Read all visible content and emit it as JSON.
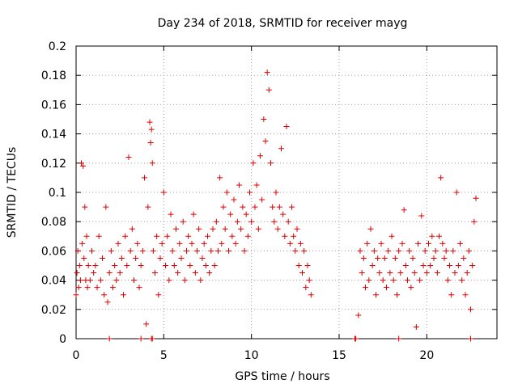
{
  "chart_data": {
    "type": "scatter",
    "title": "Day 234 of 2018, SRMTID for receiver mayg",
    "xlabel": "GPS time / hours",
    "ylabel": "SRMTID / TECUs",
    "xlim": [
      0,
      24
    ],
    "ylim": [
      0,
      0.2
    ],
    "x_ticks": [
      "0",
      "5",
      "10",
      "15",
      "20"
    ],
    "x_tick_values": [
      0,
      5,
      10,
      15,
      20
    ],
    "y_ticks": [
      "0",
      "0.02",
      "0.04",
      "0.06",
      "0.08",
      "0.1",
      "0.12",
      "0.14",
      "0.16",
      "0.18",
      "0.2"
    ],
    "y_tick_values": [
      0,
      0.02,
      0.04,
      0.06,
      0.08,
      0.1,
      0.12,
      0.14,
      0.16,
      0.18,
      0.2
    ],
    "grid": true,
    "marker": "+",
    "color": "#dd0000",
    "series": [
      {
        "name": "SRMTID",
        "points": [
          [
            0.0,
            0.03
          ],
          [
            0.05,
            0.045
          ],
          [
            0.1,
            0.06
          ],
          [
            0.15,
            0.035
          ],
          [
            0.2,
            0.05
          ],
          [
            0.25,
            0.04
          ],
          [
            0.3,
            0.12
          ],
          [
            0.35,
            0.065
          ],
          [
            0.4,
            0.118
          ],
          [
            0.45,
            0.055
          ],
          [
            0.5,
            0.09
          ],
          [
            0.55,
            0.04
          ],
          [
            0.6,
            0.07
          ],
          [
            0.65,
            0.035
          ],
          [
            0.7,
            0.05
          ],
          [
            0.8,
            0.04
          ],
          [
            0.9,
            0.06
          ],
          [
            1.0,
            0.045
          ],
          [
            1.1,
            0.05
          ],
          [
            1.2,
            0.035
          ],
          [
            1.3,
            0.07
          ],
          [
            1.4,
            0.04
          ],
          [
            1.5,
            0.055
          ],
          [
            1.6,
            0.03
          ],
          [
            1.7,
            0.09
          ],
          [
            1.8,
            0.025
          ],
          [
            1.9,
            0.045
          ],
          [
            2.0,
            0.06
          ],
          [
            2.1,
            0.035
          ],
          [
            2.2,
            0.05
          ],
          [
            2.3,
            0.04
          ],
          [
            2.4,
            0.065
          ],
          [
            2.5,
            0.045
          ],
          [
            2.6,
            0.055
          ],
          [
            2.7,
            0.03
          ],
          [
            2.8,
            0.07
          ],
          [
            2.9,
            0.05
          ],
          [
            3.0,
            0.124
          ],
          [
            3.1,
            0.06
          ],
          [
            3.2,
            0.075
          ],
          [
            3.3,
            0.04
          ],
          [
            3.4,
            0.055
          ],
          [
            3.5,
            0.065
          ],
          [
            3.6,
            0.035
          ],
          [
            3.7,
            0.05
          ],
          [
            3.8,
            0.06
          ],
          [
            3.9,
            0.11
          ],
          [
            4.0,
            0.01
          ],
          [
            4.1,
            0.09
          ],
          [
            4.2,
            0.148
          ],
          [
            4.25,
            0.134
          ],
          [
            4.3,
            0.143
          ],
          [
            4.35,
            0.12
          ],
          [
            4.4,
            0.06
          ],
          [
            4.5,
            0.045
          ],
          [
            4.6,
            0.07
          ],
          [
            4.7,
            0.03
          ],
          [
            4.8,
            0.055
          ],
          [
            4.9,
            0.065
          ],
          [
            5.0,
            0.1
          ],
          [
            5.1,
            0.05
          ],
          [
            5.2,
            0.07
          ],
          [
            5.3,
            0.04
          ],
          [
            5.4,
            0.085
          ],
          [
            5.5,
            0.06
          ],
          [
            5.6,
            0.05
          ],
          [
            5.7,
            0.075
          ],
          [
            5.8,
            0.045
          ],
          [
            5.9,
            0.065
          ],
          [
            6.0,
            0.055
          ],
          [
            6.1,
            0.08
          ],
          [
            6.2,
            0.04
          ],
          [
            6.3,
            0.06
          ],
          [
            6.4,
            0.07
          ],
          [
            6.5,
            0.05
          ],
          [
            6.6,
            0.065
          ],
          [
            6.7,
            0.085
          ],
          [
            6.8,
            0.045
          ],
          [
            6.9,
            0.06
          ],
          [
            7.0,
            0.075
          ],
          [
            7.1,
            0.04
          ],
          [
            7.2,
            0.055
          ],
          [
            7.3,
            0.065
          ],
          [
            7.4,
            0.05
          ],
          [
            7.5,
            0.07
          ],
          [
            7.6,
            0.045
          ],
          [
            7.7,
            0.06
          ],
          [
            7.8,
            0.075
          ],
          [
            7.9,
            0.05
          ],
          [
            8.0,
            0.08
          ],
          [
            8.1,
            0.06
          ],
          [
            8.2,
            0.11
          ],
          [
            8.3,
            0.065
          ],
          [
            8.4,
            0.09
          ],
          [
            8.5,
            0.075
          ],
          [
            8.6,
            0.1
          ],
          [
            8.7,
            0.06
          ],
          [
            8.8,
            0.085
          ],
          [
            8.9,
            0.07
          ],
          [
            9.0,
            0.095
          ],
          [
            9.1,
            0.065
          ],
          [
            9.2,
            0.08
          ],
          [
            9.3,
            0.105
          ],
          [
            9.4,
            0.075
          ],
          [
            9.5,
            0.09
          ],
          [
            9.6,
            0.06
          ],
          [
            9.7,
            0.085
          ],
          [
            9.8,
            0.07
          ],
          [
            9.9,
            0.1
          ],
          [
            10.0,
            0.08
          ],
          [
            10.1,
            0.12
          ],
          [
            10.2,
            0.09
          ],
          [
            10.3,
            0.105
          ],
          [
            10.4,
            0.075
          ],
          [
            10.5,
            0.125
          ],
          [
            10.6,
            0.095
          ],
          [
            10.7,
            0.15
          ],
          [
            10.8,
            0.135
          ],
          [
            10.9,
            0.182
          ],
          [
            11.0,
            0.17
          ],
          [
            11.1,
            0.12
          ],
          [
            11.2,
            0.09
          ],
          [
            11.3,
            0.08
          ],
          [
            11.4,
            0.1
          ],
          [
            11.5,
            0.075
          ],
          [
            11.6,
            0.09
          ],
          [
            11.7,
            0.13
          ],
          [
            11.8,
            0.085
          ],
          [
            11.9,
            0.07
          ],
          [
            12.0,
            0.145
          ],
          [
            12.1,
            0.08
          ],
          [
            12.2,
            0.065
          ],
          [
            12.3,
            0.09
          ],
          [
            12.4,
            0.07
          ],
          [
            12.5,
            0.06
          ],
          [
            12.6,
            0.075
          ],
          [
            12.7,
            0.05
          ],
          [
            12.8,
            0.065
          ],
          [
            12.9,
            0.045
          ],
          [
            13.0,
            0.06
          ],
          [
            13.1,
            0.035
          ],
          [
            13.2,
            0.05
          ],
          [
            13.3,
            0.04
          ],
          [
            13.4,
            0.03
          ],
          [
            16.1,
            0.016
          ],
          [
            16.2,
            0.06
          ],
          [
            16.3,
            0.045
          ],
          [
            16.4,
            0.055
          ],
          [
            16.5,
            0.035
          ],
          [
            16.6,
            0.065
          ],
          [
            16.7,
            0.04
          ],
          [
            16.8,
            0.075
          ],
          [
            16.9,
            0.05
          ],
          [
            17.0,
            0.06
          ],
          [
            17.1,
            0.03
          ],
          [
            17.2,
            0.055
          ],
          [
            17.3,
            0.045
          ],
          [
            17.4,
            0.065
          ],
          [
            17.5,
            0.04
          ],
          [
            17.6,
            0.055
          ],
          [
            17.7,
            0.035
          ],
          [
            17.8,
            0.06
          ],
          [
            17.9,
            0.045
          ],
          [
            18.0,
            0.07
          ],
          [
            18.1,
            0.04
          ],
          [
            18.2,
            0.055
          ],
          [
            18.3,
            0.03
          ],
          [
            18.4,
            0.06
          ],
          [
            18.5,
            0.045
          ],
          [
            18.6,
            0.065
          ],
          [
            18.7,
            0.088
          ],
          [
            18.8,
            0.05
          ],
          [
            18.9,
            0.04
          ],
          [
            19.0,
            0.06
          ],
          [
            19.1,
            0.035
          ],
          [
            19.2,
            0.055
          ],
          [
            19.3,
            0.045
          ],
          [
            19.4,
            0.008
          ],
          [
            19.5,
            0.065
          ],
          [
            19.6,
            0.04
          ],
          [
            19.7,
            0.084
          ],
          [
            19.8,
            0.05
          ],
          [
            19.9,
            0.06
          ],
          [
            20.0,
            0.045
          ],
          [
            20.1,
            0.065
          ],
          [
            20.2,
            0.05
          ],
          [
            20.3,
            0.07
          ],
          [
            20.4,
            0.055
          ],
          [
            20.5,
            0.06
          ],
          [
            20.6,
            0.045
          ],
          [
            20.7,
            0.07
          ],
          [
            20.8,
            0.11
          ],
          [
            20.9,
            0.065
          ],
          [
            21.0,
            0.055
          ],
          [
            21.1,
            0.06
          ],
          [
            21.2,
            0.04
          ],
          [
            21.3,
            0.05
          ],
          [
            21.4,
            0.03
          ],
          [
            21.5,
            0.06
          ],
          [
            21.6,
            0.045
          ],
          [
            21.7,
            0.1
          ],
          [
            21.8,
            0.05
          ],
          [
            21.9,
            0.065
          ],
          [
            22.0,
            0.04
          ],
          [
            22.1,
            0.055
          ],
          [
            22.2,
            0.03
          ],
          [
            22.3,
            0.045
          ],
          [
            22.4,
            0.06
          ],
          [
            22.5,
            0.02
          ],
          [
            22.6,
            0.05
          ],
          [
            22.7,
            0.08
          ],
          [
            22.8,
            0.096
          ]
        ]
      }
    ],
    "baseline_points": [
      [
        1.9,
        0
      ],
      [
        3.7,
        0
      ],
      [
        4.3,
        0
      ],
      [
        4.35,
        0
      ],
      [
        15.9,
        0
      ],
      [
        15.95,
        0
      ],
      [
        18.4,
        0
      ],
      [
        22.5,
        0
      ]
    ]
  }
}
